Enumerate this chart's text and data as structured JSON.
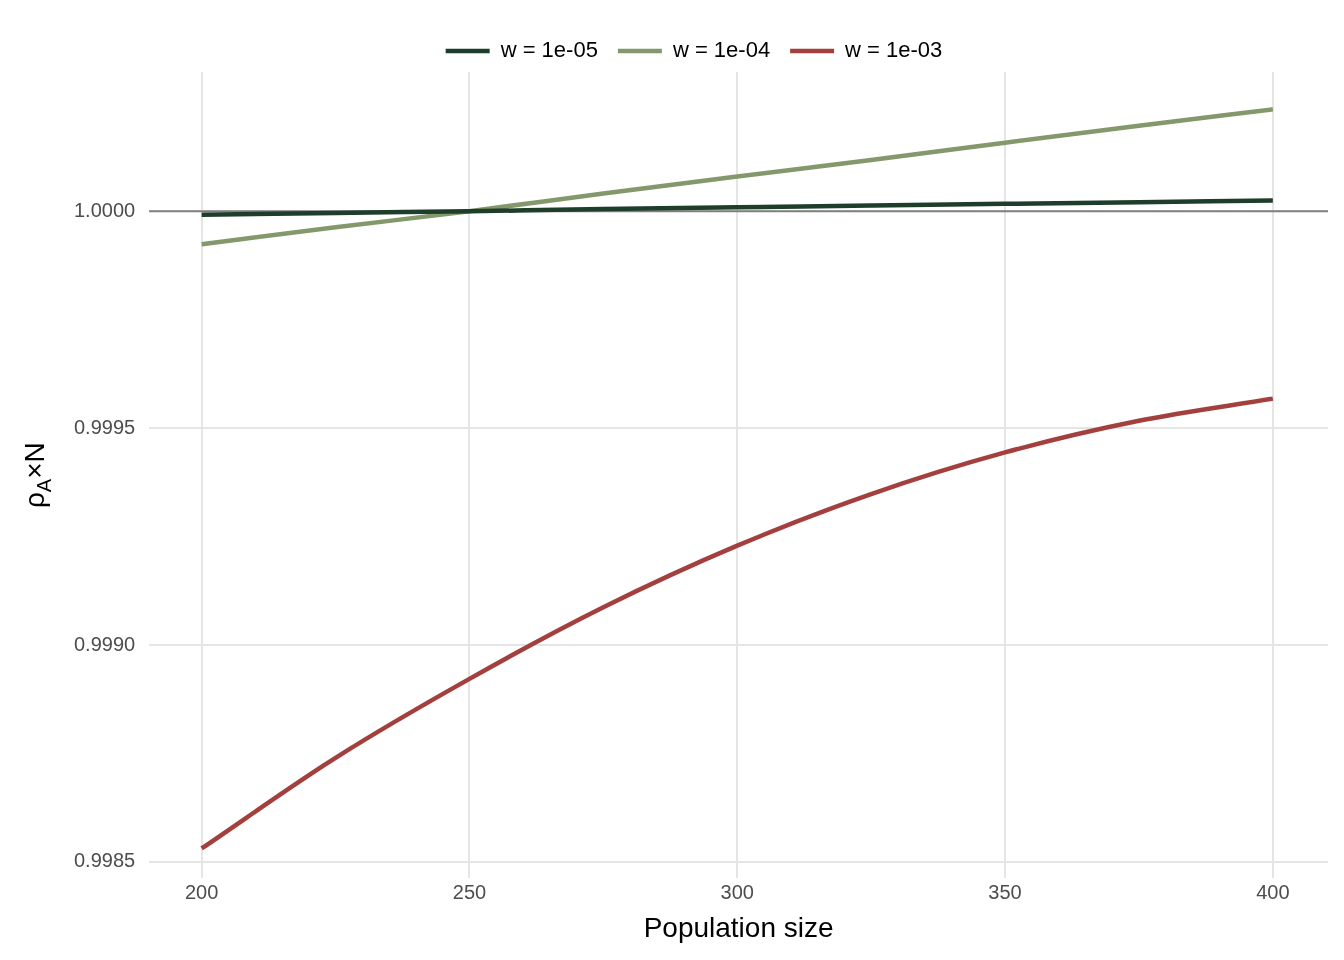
{
  "chart_data": {
    "type": "line",
    "xlabel": "Population size",
    "ylabel": "ρ$_{A}$×N",
    "x": [
      200,
      225,
      250,
      275,
      300,
      325,
      350,
      375,
      400
    ],
    "series": [
      {
        "name": "w = 1e-05",
        "color": "#1e3d2a",
        "values": [
          0.999992,
          0.999996,
          1.0,
          1.000005,
          1.000009,
          1.000013,
          1.000017,
          1.000021,
          1.000025
        ]
      },
      {
        "name": "w = 1e-04",
        "color": "#83996b",
        "values": [
          0.999924,
          0.999963,
          1.0,
          1.000041,
          1.00008,
          1.000118,
          1.000158,
          1.000197,
          1.000235
        ]
      },
      {
        "name": "w = 1e-03",
        "color": "#a3403e",
        "values": [
          0.998531,
          0.99874,
          0.998922,
          0.999087,
          0.999229,
          0.999348,
          0.999444,
          0.999517,
          0.999568
        ]
      }
    ],
    "xlim": [
      190.2,
      410.3
    ],
    "ylim": [
      0.998462,
      1.000321
    ],
    "xticks": [
      200,
      250,
      300,
      350,
      400
    ],
    "yticks": [
      {
        "value": 0.9985,
        "label": "0.9985"
      },
      {
        "value": 0.999,
        "label": "0.9990"
      },
      {
        "value": 0.9995,
        "label": "0.9995"
      },
      {
        "value": 1,
        "label": "1.0000"
      }
    ],
    "ref_lines": [
      {
        "axis": "y",
        "value": 1,
        "color": "#7f7f7f"
      }
    ],
    "grid": true,
    "legend": "top",
    "marker": "none",
    "line_style": "solid"
  }
}
